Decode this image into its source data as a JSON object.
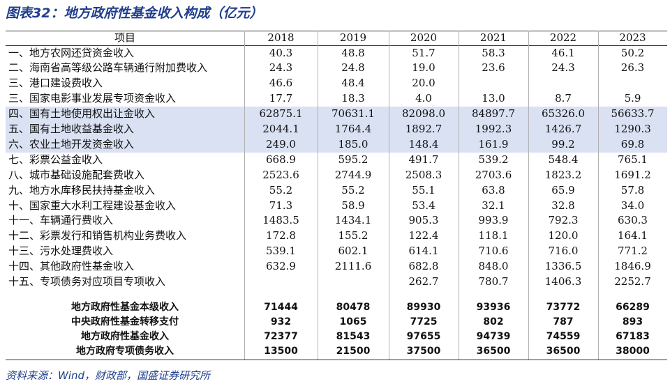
{
  "header": {
    "title": "图表32：地方政府性基金收入构成（亿元）"
  },
  "table": {
    "columns": [
      "项目",
      "2018",
      "2019",
      "2020",
      "2021",
      "2022",
      "2023"
    ],
    "rows": [
      [
        "一、地方农网还贷资金收入",
        "40.3",
        "48.8",
        "51.7",
        "58.3",
        "46.1",
        "50.2"
      ],
      [
        "二、海南省高等级公路车辆通行附加费收入",
        "24.3",
        "24.8",
        "19.0",
        "23.6",
        "24.3",
        "26.3"
      ],
      [
        "三、港口建设费收入",
        "46.6",
        "48.4",
        "20.0",
        null,
        null,
        null
      ],
      [
        "三、国家电影事业发展专项资金收入",
        "17.7",
        "18.3",
        "4.0",
        "13.0",
        "8.7",
        "5.9"
      ],
      [
        "四、国有土地使用权出让金收入",
        "62875.1",
        "70631.1",
        "82098.0",
        "84897.7",
        "65326.0",
        "56633.7"
      ],
      [
        "五、国有土地收益基金收入",
        "2044.1",
        "1764.4",
        "1892.7",
        "1992.3",
        "1426.7",
        "1290.3"
      ],
      [
        "六、农业土地开发资金收入",
        "249.0",
        "185.0",
        "148.4",
        "161.9",
        "99.2",
        "69.8"
      ],
      [
        "七、彩票公益金收入",
        "668.9",
        "595.2",
        "491.7",
        "539.2",
        "548.4",
        "765.1"
      ],
      [
        "八、城市基础设施配套费收入",
        "2523.6",
        "2744.9",
        "2508.3",
        "2703.6",
        "1823.2",
        "1691.2"
      ],
      [
        "九、地方水库移民扶持基金收入",
        "55.2",
        "55.2",
        "55.1",
        "63.8",
        "65.9",
        "57.8"
      ],
      [
        "十、国家重大水利工程建设基金收入",
        "71.3",
        "58.9",
        "53.4",
        "32.1",
        "32.8",
        "34.0"
      ],
      [
        "十一、车辆通行费收入",
        "1483.5",
        "1434.1",
        "905.3",
        "993.9",
        "792.3",
        "630.3"
      ],
      [
        "十二、彩票发行和销售机构业务费收入",
        "172.8",
        "155.2",
        "122.4",
        "118.1",
        "120.0",
        "164.1"
      ],
      [
        "十三、污水处理费收入",
        "539.1",
        "602.1",
        "614.1",
        "710.6",
        "716.0",
        "771.2"
      ],
      [
        "十四、其他政府性基金收入",
        "632.9",
        "2111.6",
        "682.8",
        "848.0",
        "1336.5",
        "1846.9"
      ],
      [
        "十五、专项债务对应项目专项收入",
        null,
        null,
        "262.7",
        "780.7",
        "1406.3",
        "2252.7"
      ]
    ],
    "summary_rows": [
      [
        "地方政府性基金本级收入",
        "71444",
        "80478",
        "89930",
        "93936",
        "73772",
        "66289"
      ],
      [
        "中央政府性基金转移支付",
        "932",
        "1065",
        "7725",
        "802",
        "787",
        "893"
      ],
      [
        "地方政府性基金收入",
        "72377",
        "81543",
        "97655",
        "94739",
        "74559",
        "67183"
      ],
      [
        "地方政府专项债务收入",
        "13500",
        "21500",
        "37500",
        "36500",
        "36500",
        "38000"
      ]
    ]
  },
  "source": "资料来源：Wind，财政部，国盛证券研究所"
}
